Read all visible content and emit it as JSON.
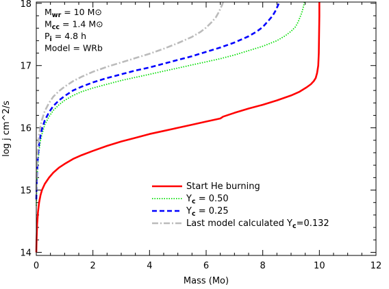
{
  "chart_data": {
    "type": "line",
    "xlabel": "Mass (Mo)",
    "ylabel": "log j cm^2/s",
    "xlim": [
      0,
      12
    ],
    "ylim": [
      13.95,
      18.02
    ],
    "grid": false,
    "legend_position": "bottom-right",
    "x_ticks": [
      0,
      2,
      4,
      6,
      8,
      10,
      12
    ],
    "y_ticks": [
      14,
      15,
      16,
      17,
      18
    ],
    "annotations": [
      {
        "label": "M",
        "sub": "wr",
        "rest": " = 10 M",
        "symbol": "⊙"
      },
      {
        "label": "M",
        "sub": "cc",
        "rest": " = 1.4 M",
        "symbol": "⊙"
      },
      {
        "label": "P",
        "sub": "i",
        "rest": " = 4.8 h",
        "symbol": ""
      },
      {
        "label": "Model",
        "sub": "",
        "rest": "  = WRb",
        "symbol": ""
      }
    ],
    "series": [
      {
        "name": "Start He burning",
        "legend_text": "Start He burning",
        "color": "#ff0000",
        "dash": "",
        "width": 2.6,
        "x": [
          0.0,
          0.01,
          0.03,
          0.06,
          0.1,
          0.15,
          0.2,
          0.3,
          0.45,
          0.6,
          0.8,
          1.0,
          1.3,
          1.6,
          2.0,
          2.5,
          3.0,
          3.5,
          4.0,
          4.5,
          5.0,
          5.5,
          6.0,
          6.5,
          6.6,
          7.0,
          7.5,
          8.0,
          8.5,
          9.0,
          9.3,
          9.55,
          9.7,
          9.8,
          9.87,
          9.92,
          9.96,
          9.98,
          9.99,
          10.0,
          10.0
        ],
        "y": [
          14.0,
          14.2,
          14.45,
          14.65,
          14.8,
          14.92,
          15.0,
          15.1,
          15.2,
          15.28,
          15.36,
          15.42,
          15.5,
          15.56,
          15.63,
          15.71,
          15.78,
          15.84,
          15.9,
          15.95,
          16.0,
          16.05,
          16.1,
          16.15,
          16.18,
          16.24,
          16.31,
          16.37,
          16.44,
          16.52,
          16.58,
          16.65,
          16.7,
          16.75,
          16.8,
          16.88,
          17.0,
          17.2,
          17.5,
          17.8,
          18.02
        ]
      },
      {
        "name": "Y_c = 0.50",
        "legend_text": "Y",
        "legend_sub": "c",
        "legend_rest": " = 0.50",
        "color": "#00dd00",
        "dash": "1.5,2",
        "width": 1.8,
        "x": [
          0.0,
          0.02,
          0.05,
          0.1,
          0.15,
          0.2,
          0.3,
          0.45,
          0.6,
          0.8,
          1.0,
          1.3,
          1.6,
          2.0,
          2.5,
          3.0,
          3.5,
          4.0,
          4.5,
          5.0,
          5.5,
          6.0,
          6.5,
          7.0,
          7.5,
          8.0,
          8.5,
          8.8,
          9.0,
          9.15,
          9.25,
          9.32,
          9.38,
          9.42,
          9.45,
          9.47
        ],
        "y": [
          14.75,
          15.1,
          15.4,
          15.65,
          15.8,
          15.9,
          16.05,
          16.18,
          16.28,
          16.37,
          16.44,
          16.52,
          16.58,
          16.64,
          16.7,
          16.76,
          16.81,
          16.86,
          16.91,
          16.96,
          17.01,
          17.06,
          17.11,
          17.17,
          17.24,
          17.31,
          17.4,
          17.48,
          17.55,
          17.62,
          17.7,
          17.78,
          17.85,
          17.92,
          17.97,
          18.02
        ]
      },
      {
        "name": "Y_c = 0.25",
        "legend_text": "Y",
        "legend_sub": "c",
        "legend_rest": " = 0.25",
        "color": "#0000ff",
        "dash": "7,4",
        "width": 2.6,
        "x": [
          0.0,
          0.02,
          0.05,
          0.1,
          0.15,
          0.2,
          0.3,
          0.45,
          0.6,
          0.8,
          1.0,
          1.3,
          1.6,
          2.0,
          2.5,
          3.0,
          3.5,
          4.0,
          4.5,
          5.0,
          5.5,
          6.0,
          6.5,
          7.0,
          7.5,
          7.8,
          8.0,
          8.2,
          8.35,
          8.45,
          8.52,
          8.57,
          8.6
        ],
        "y": [
          14.85,
          15.2,
          15.5,
          15.75,
          15.88,
          15.98,
          16.12,
          16.25,
          16.35,
          16.44,
          16.51,
          16.6,
          16.66,
          16.73,
          16.8,
          16.86,
          16.92,
          16.97,
          17.03,
          17.09,
          17.15,
          17.22,
          17.29,
          17.37,
          17.47,
          17.55,
          17.62,
          17.72,
          17.8,
          17.88,
          17.95,
          18.0,
          18.02
        ]
      },
      {
        "name": "Last model calculated Y_c=0.132",
        "legend_text": "Last model calculated Y",
        "legend_sub": "c",
        "legend_rest": "=0.132",
        "color": "#bbbbbb",
        "dash": "9,3,2,3",
        "width": 2.6,
        "x": [
          0.0,
          0.02,
          0.05,
          0.1,
          0.15,
          0.2,
          0.3,
          0.45,
          0.6,
          0.8,
          1.0,
          1.3,
          1.6,
          2.0,
          2.5,
          3.0,
          3.5,
          4.0,
          4.5,
          5.0,
          5.5,
          5.8,
          6.0,
          6.2,
          6.35,
          6.45,
          6.52,
          6.57,
          6.6
        ],
        "y": [
          15.0,
          15.35,
          15.65,
          15.9,
          16.03,
          16.13,
          16.27,
          16.4,
          16.5,
          16.59,
          16.66,
          16.75,
          16.82,
          16.9,
          16.98,
          17.05,
          17.12,
          17.19,
          17.27,
          17.36,
          17.46,
          17.54,
          17.61,
          17.7,
          17.78,
          17.86,
          17.93,
          17.98,
          18.02
        ]
      }
    ]
  }
}
